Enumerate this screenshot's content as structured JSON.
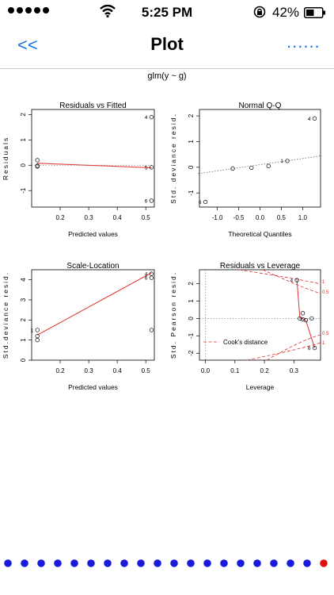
{
  "status": {
    "time": "5:25 PM",
    "battery": "42%",
    "icons": [
      "signal-dots",
      "wifi-icon",
      "rotation-lock-icon",
      "battery-icon"
    ]
  },
  "nav": {
    "back_label": "<<",
    "title": "Plot",
    "more_label": "......"
  },
  "plot_title": "glm(y ~ g)",
  "chart_data": [
    {
      "type": "scatter",
      "title": "Residuals vs Fitted",
      "xlabel": "Predicted values",
      "ylabel": "Residuals",
      "xticks": [
        "0.2",
        "0.3",
        "0.4",
        "0.5"
      ],
      "yticks": [
        "-1",
        "0",
        "1",
        "2"
      ],
      "points": [
        [
          0.12,
          0.2
        ],
        [
          0.12,
          -0.05
        ],
        [
          0.12,
          -0.02
        ],
        [
          0.52,
          1.9
        ],
        [
          0.52,
          -0.08
        ],
        [
          0.52,
          -1.4
        ]
      ],
      "point_labels": [
        {
          "text": "4",
          "x": 0.52,
          "y": 1.9
        },
        {
          "text": "5",
          "x": 0.52,
          "y": -0.08
        },
        {
          "text": "6",
          "x": 0.52,
          "y": -1.4
        }
      ],
      "fit_line": [
        [
          0.12,
          0.08
        ],
        [
          0.52,
          -0.1
        ]
      ]
    },
    {
      "type": "scatter",
      "title": "Normal Q-Q",
      "xlabel": "Theoretical Quantiles",
      "ylabel": "Std. deviance resid.",
      "xticks": [
        "-1.0",
        "-0.5",
        "0.0",
        "0.5",
        "1.0"
      ],
      "yticks": [
        "-1",
        "0",
        "1",
        "2"
      ],
      "points": [
        [
          -1.28,
          -1.35
        ],
        [
          -0.64,
          -0.05
        ],
        [
          -0.2,
          -0.02
        ],
        [
          0.2,
          0.05
        ],
        [
          0.64,
          0.25
        ],
        [
          1.28,
          1.9
        ]
      ],
      "point_labels": [
        {
          "text": "4",
          "x": 1.28,
          "y": 1.9
        },
        {
          "text": "1",
          "x": 0.64,
          "y": 0.25
        },
        {
          "text": "6",
          "x": -1.28,
          "y": -1.35
        }
      ],
      "ref_line": [
        [
          -1.45,
          -0.25
        ],
        [
          1.45,
          0.45
        ]
      ]
    },
    {
      "type": "scatter",
      "title": "Scale-Location",
      "xlabel": "Predicted values",
      "ylabel": "Std.deviance resid.",
      "xticks": [
        "0.2",
        "0.3",
        "0.4",
        "0.5"
      ],
      "yticks": [
        "0",
        "1",
        "2",
        "3",
        "4"
      ],
      "points": [
        [
          0.12,
          1.5
        ],
        [
          0.12,
          1.0
        ],
        [
          0.12,
          1.2
        ],
        [
          0.52,
          4.3
        ],
        [
          0.52,
          4.1
        ],
        [
          0.52,
          1.5
        ]
      ],
      "point_labels": [
        {
          "text": "1",
          "x": 0.12,
          "y": 1.5
        },
        {
          "text": "4",
          "x": 0.52,
          "y": 4.3
        },
        {
          "text": "6",
          "x": 0.52,
          "y": 4.1
        }
      ],
      "fit_line": [
        [
          0.12,
          1.25
        ],
        [
          0.52,
          4.35
        ]
      ]
    },
    {
      "type": "scatter",
      "title": "Residuals vs Leverage",
      "xlabel": "Leverage",
      "ylabel": "Std. Pearson resid.",
      "xticks": [
        "0.0",
        "0.1",
        "0.2",
        "0.3"
      ],
      "yticks": [
        "-2",
        "-1",
        "0",
        "1",
        "2"
      ],
      "points": [
        [
          0.31,
          2.2
        ],
        [
          0.32,
          0.0
        ],
        [
          0.33,
          0.3
        ],
        [
          0.33,
          -0.05
        ],
        [
          0.34,
          -0.1
        ],
        [
          0.36,
          0.0
        ],
        [
          0.37,
          -1.7
        ]
      ],
      "point_labels": [
        {
          "text": "4",
          "x": 0.31,
          "y": 2.2
        },
        {
          "text": "6",
          "x": 0.37,
          "y": -1.7
        }
      ],
      "fit_line": [
        [
          0.31,
          2.2
        ],
        [
          0.32,
          0.05
        ],
        [
          0.34,
          -0.1
        ],
        [
          0.37,
          -1.7
        ]
      ],
      "legend": "Cook's distance",
      "contour_labels": [
        "1",
        "0.5",
        "0.5",
        "1"
      ]
    }
  ],
  "page_indicator": {
    "count": 20,
    "active": 19
  }
}
